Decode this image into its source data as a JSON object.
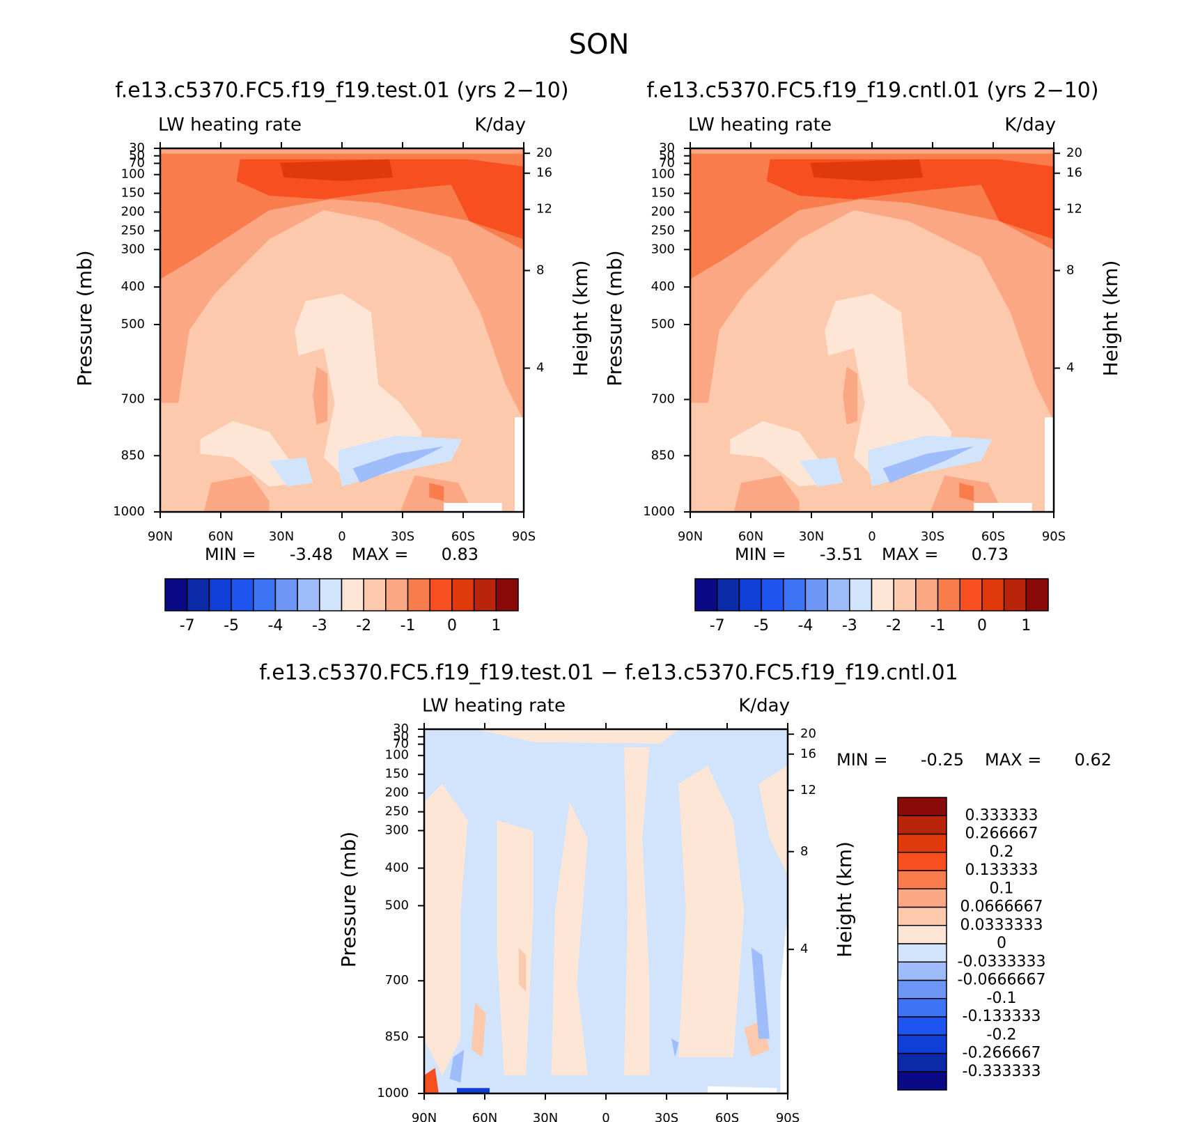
{
  "page_title": "SON",
  "chart_data": [
    {
      "type": "contour",
      "title": "f.e13.c5370.FC5.f19_f19.test.01 (yrs 2−10)",
      "left_string": "LW heating rate",
      "right_string": "K/day",
      "ylabel": "Pressure (mb)",
      "y2label": "Height (km)",
      "xlim": [
        90,
        -90
      ],
      "xticks": [
        {
          "value": 90,
          "label": "90N"
        },
        {
          "value": 60,
          "label": "60N"
        },
        {
          "value": 30,
          "label": "30N"
        },
        0,
        {
          "value": -30,
          "label": "30S"
        },
        {
          "value": -60,
          "label": "60S"
        },
        {
          "value": -90,
          "label": "90S"
        }
      ],
      "ylim": [
        1000,
        30
      ],
      "yticks": [
        30,
        50,
        70,
        100,
        150,
        200,
        250,
        300,
        400,
        500,
        700,
        850,
        1000
      ],
      "y2lim": [
        0.11,
        23.85
      ],
      "y2ticks": [
        20,
        16,
        12,
        8,
        4
      ],
      "min_label": "MIN =",
      "min": -3.48,
      "max_label": "MAX =",
      "max": 0.83,
      "colorbar": {
        "orientation": "horizontal",
        "colors": [
          "#0a0a86",
          "#0a2aa8",
          "#0f3fd6",
          "#1e55f0",
          "#3d73f5",
          "#6d96f7",
          "#9dbcf9",
          "#d2e4fb",
          "#fde6d6",
          "#fcc9ad",
          "#fba784",
          "#f97c4d",
          "#f74f1f",
          "#e03a0c",
          "#b8250a",
          "#8a0a0a"
        ],
        "ticks": [
          -7,
          -5,
          -4,
          -3,
          -2,
          -1,
          0,
          1
        ]
      }
    },
    {
      "type": "contour",
      "title": "f.e13.c5370.FC5.f19_f19.cntl.01 (yrs 2−10)",
      "left_string": "LW heating rate",
      "right_string": "K/day",
      "ylabel": "Pressure (mb)",
      "y2label": "Height (km)",
      "xlim": [
        90,
        -90
      ],
      "xticks": [
        {
          "value": 90,
          "label": "90N"
        },
        {
          "value": 60,
          "label": "60N"
        },
        {
          "value": 30,
          "label": "30N"
        },
        0,
        {
          "value": -30,
          "label": "30S"
        },
        {
          "value": -60,
          "label": "60S"
        },
        {
          "value": -90,
          "label": "90S"
        }
      ],
      "ylim": [
        1000,
        30
      ],
      "yticks": [
        30,
        50,
        70,
        100,
        150,
        200,
        250,
        300,
        400,
        500,
        700,
        850,
        1000
      ],
      "y2lim": [
        0.11,
        23.85
      ],
      "y2ticks": [
        20,
        16,
        12,
        8,
        4
      ],
      "min_label": "MIN =",
      "min": -3.51,
      "max_label": "MAX =",
      "max": 0.73,
      "colorbar": {
        "orientation": "horizontal",
        "colors": [
          "#0a0a86",
          "#0a2aa8",
          "#0f3fd6",
          "#1e55f0",
          "#3d73f5",
          "#6d96f7",
          "#9dbcf9",
          "#d2e4fb",
          "#fde6d6",
          "#fcc9ad",
          "#fba784",
          "#f97c4d",
          "#f74f1f",
          "#e03a0c",
          "#b8250a",
          "#8a0a0a"
        ],
        "ticks": [
          -7,
          -5,
          -4,
          -3,
          -2,
          -1,
          0,
          1
        ]
      }
    },
    {
      "type": "contour",
      "title": "f.e13.c5370.FC5.f19_f19.test.01 − f.e13.c5370.FC5.f19_f19.cntl.01",
      "left_string": "LW heating rate",
      "right_string": "K/day",
      "ylabel": "Pressure (mb)",
      "y2label": "Height (km)",
      "xlim": [
        90,
        -90
      ],
      "xticks": [
        {
          "value": 90,
          "label": "90N"
        },
        {
          "value": 60,
          "label": "60N"
        },
        {
          "value": 30,
          "label": "30N"
        },
        0,
        {
          "value": -30,
          "label": "30S"
        },
        {
          "value": -60,
          "label": "60S"
        },
        {
          "value": -90,
          "label": "90S"
        }
      ],
      "ylim": [
        1000,
        30
      ],
      "yticks": [
        30,
        50,
        70,
        100,
        150,
        200,
        250,
        300,
        400,
        500,
        700,
        850,
        1000
      ],
      "y2lim": [
        0.11,
        23.85
      ],
      "y2ticks": [
        20,
        16,
        12,
        8,
        4
      ],
      "min_label": "MIN =",
      "min": -0.25,
      "max_label": "MAX =",
      "max": 0.62,
      "colorbar": {
        "orientation": "vertical",
        "colors": [
          "#0a0a86",
          "#0a2aa8",
          "#0f3fd6",
          "#1e55f0",
          "#3d73f5",
          "#6d96f7",
          "#9dbcf9",
          "#d2e4fb",
          "#fde6d6",
          "#fcc9ad",
          "#fba784",
          "#f97c4d",
          "#f74f1f",
          "#e03a0c",
          "#b8250a",
          "#8a0a0a"
        ],
        "ticks": [
          -0.333333,
          -0.266667,
          -0.2,
          -0.133333,
          -0.1,
          -0.0666667,
          -0.0333333,
          0,
          0.0333333,
          0.0666667,
          0.1,
          0.133333,
          0.2,
          0.266667,
          0.333333
        ]
      }
    }
  ]
}
